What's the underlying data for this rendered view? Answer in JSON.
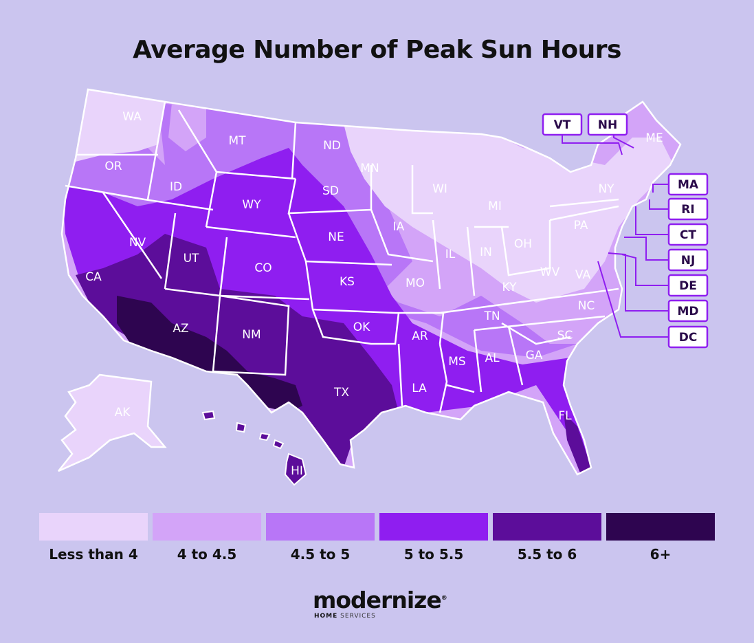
{
  "title": "Average Number of Peak Sun Hours",
  "colors": {
    "background": "#cbc5ef",
    "lt4": "#e9d4fb",
    "4to4_5": "#d3a4f8",
    "4_5to5": "#b876f7",
    "5to5_5": "#8f1ef0",
    "5_5to6": "#5c0d9a",
    "6plus": "#2e0550"
  },
  "legend": [
    {
      "label": "Less than 4",
      "color": "#e9d4fb"
    },
    {
      "label": "4 to 4.5",
      "color": "#d3a4f8"
    },
    {
      "label": "4.5 to 5",
      "color": "#b876f7"
    },
    {
      "label": "5 to 5.5",
      "color": "#8f1ef0"
    },
    {
      "label": "5.5 to 6",
      "color": "#5c0d9a"
    },
    {
      "label": "6+",
      "color": "#2e0550"
    }
  ],
  "states": [
    "WA",
    "OR",
    "CA",
    "ID",
    "NV",
    "MT",
    "WY",
    "UT",
    "AZ",
    "CO",
    "NM",
    "ND",
    "SD",
    "NE",
    "KS",
    "OK",
    "TX",
    "MN",
    "IA",
    "MO",
    "AR",
    "LA",
    "WI",
    "IL",
    "MI",
    "IN",
    "OH",
    "KY",
    "TN",
    "MS",
    "AL",
    "GA",
    "FL",
    "SC",
    "NC",
    "VA",
    "WV",
    "PA",
    "NY",
    "ME",
    "AK",
    "HI"
  ],
  "callouts": [
    "VT",
    "NH",
    "MA",
    "RI",
    "CT",
    "NJ",
    "DE",
    "MD",
    "DC"
  ],
  "logo": {
    "name": "moderniz",
    "suffix": "e",
    "reg": "®",
    "sub_bold": "HOME",
    "sub": "SERVICES"
  }
}
